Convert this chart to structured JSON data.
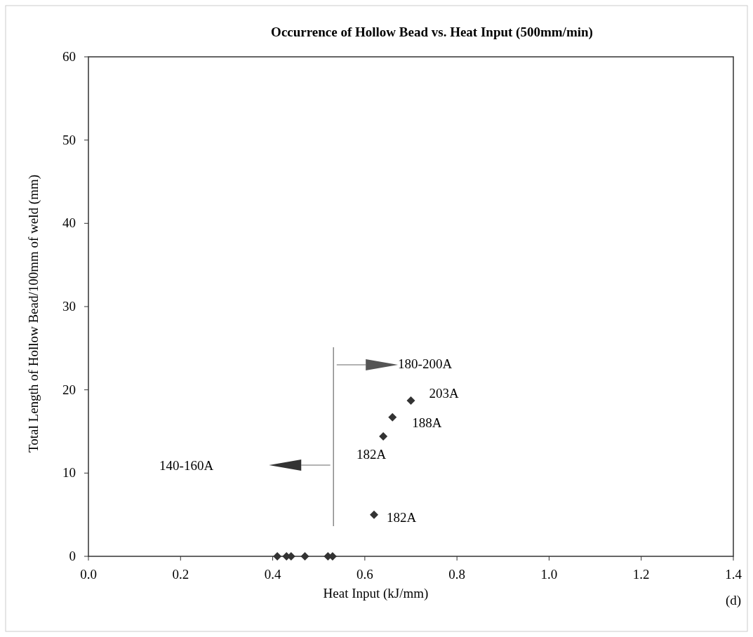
{
  "chart_data": {
    "type": "scatter",
    "title": "Occurrence of Hollow Bead vs. Heat Input (500mm/min)",
    "xlabel": "Heat Input (kJ/mm)",
    "ylabel": "Total Length of Hollow Bead/100mm of weld (mm)",
    "x": [
      0.41,
      0.43,
      0.44,
      0.47,
      0.52,
      0.53,
      0.62,
      0.64,
      0.66,
      0.7
    ],
    "values": [
      0,
      0,
      0,
      0,
      0,
      0,
      5,
      14.4,
      16.7,
      18.7
    ],
    "color": "#333333",
    "marker": "diamond",
    "grid": false,
    "xlim": [
      0,
      1.4
    ],
    "xticks": [
      {
        "value": 0,
        "label": "0.0"
      },
      0.2,
      0.4,
      0.6,
      0.8,
      {
        "value": 1,
        "label": "1.0"
      },
      1.2,
      1.4
    ],
    "ylim": [
      0,
      60
    ],
    "yticks": [
      0,
      10,
      20,
      30,
      40,
      50,
      60
    ],
    "annotations": [
      {
        "text": "182A",
        "x": 0.62,
        "y": 5
      },
      {
        "text": "182A",
        "x": 0.64,
        "y": 14.4
      },
      {
        "text": "188A",
        "x": 0.66,
        "y": 16.7
      },
      {
        "text": "203A",
        "x": 0.7,
        "y": 18.7
      },
      "180-200A",
      "140-160A",
      "(d)"
    ]
  }
}
